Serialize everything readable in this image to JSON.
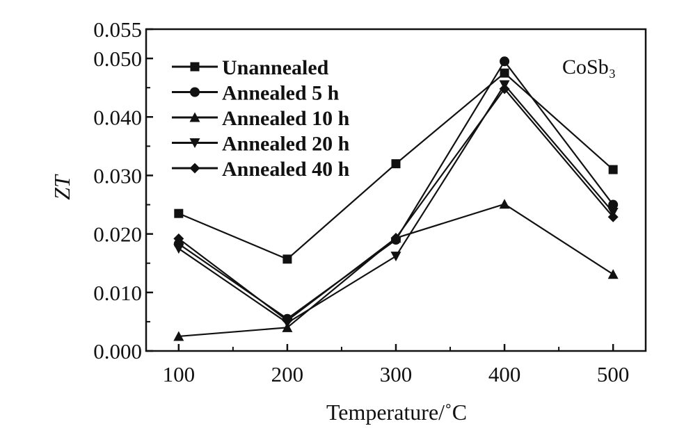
{
  "chart_data": {
    "type": "line",
    "xlabel": "Temperature/˚C",
    "ylabel": "ZT",
    "annotation": "CoSb₃",
    "x": [
      100,
      200,
      300,
      400,
      500
    ],
    "x_ticks": [
      "100",
      "200",
      "300",
      "400",
      "500"
    ],
    "xlim": [
      70,
      530
    ],
    "ylim": [
      0.0,
      0.055
    ],
    "y_ticks": [
      "0.000",
      "0.010",
      "0.020",
      "0.030",
      "0.040",
      "0.050",
      "0.055"
    ],
    "legend_position": "top-left",
    "grid": false,
    "series": [
      {
        "name": "Unannealed",
        "marker": "square",
        "values": [
          0.0235,
          0.0157,
          0.032,
          0.0475,
          0.031
        ]
      },
      {
        "name": "Annealed 5 h",
        "marker": "circle",
        "values": [
          0.0183,
          0.0055,
          0.019,
          0.0495,
          0.025
        ]
      },
      {
        "name": "Annealed 10 h",
        "marker": "triangle-up",
        "values": [
          0.0025,
          0.004,
          0.0193,
          0.0251,
          0.0131
        ]
      },
      {
        "name": "Annealed 20 h",
        "marker": "triangle-down",
        "values": [
          0.0175,
          0.0048,
          0.0162,
          0.0455,
          0.0237
        ]
      },
      {
        "name": "Annealed 40 h",
        "marker": "diamond",
        "values": [
          0.0192,
          0.0052,
          0.0193,
          0.0448,
          0.0229
        ]
      }
    ]
  }
}
